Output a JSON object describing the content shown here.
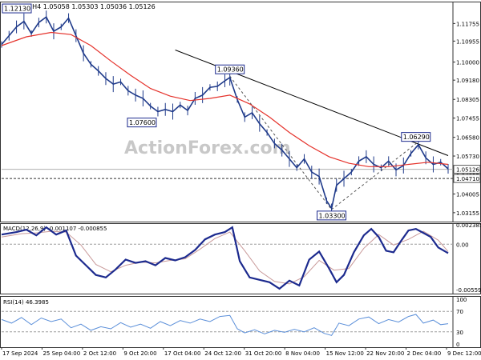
{
  "chart_data": [
    {
      "type": "candlestick",
      "title": "EURUSD,H4  1.05058 1.05303 1.05036 1.05126",
      "watermark": "ActionForex.com",
      "ylim": [
        1.0275,
        1.1275
      ],
      "y_ticks": [
        "1.11755",
        "1.10955",
        "1.10000",
        "1.09180",
        "1.08305",
        "1.07455",
        "1.06580",
        "1.05730",
        "1.04855",
        "1.04005",
        "1.03155"
      ],
      "x_ticks": [
        "17 Sep 2024",
        "25 Sep 04:00",
        "2 Oct 12:00",
        "9 Oct 20:00",
        "17 Oct 04:00",
        "24 Oct 12:00",
        "31 Oct 20:00",
        "8 Nov 04:00",
        "15 Nov 12:00",
        "22 Nov 20:00",
        "2 Dec 04:00",
        "9 Dec 12:00"
      ],
      "price_series": [
        {
          "x": 0,
          "y": 1.108
        },
        {
          "x": 3,
          "y": 1.112
        },
        {
          "x": 6,
          "y": 1.116
        },
        {
          "x": 9,
          "y": 1.1185
        },
        {
          "x": 12,
          "y": 1.113
        },
        {
          "x": 15,
          "y": 1.118
        },
        {
          "x": 18,
          "y": 1.1205
        },
        {
          "x": 21,
          "y": 1.114
        },
        {
          "x": 24,
          "y": 1.116
        },
        {
          "x": 27,
          "y": 1.12
        },
        {
          "x": 30,
          "y": 1.112
        },
        {
          "x": 33,
          "y": 1.104
        },
        {
          "x": 36,
          "y": 1.099
        },
        {
          "x": 39,
          "y": 1.096
        },
        {
          "x": 42,
          "y": 1.0925
        },
        {
          "x": 45,
          "y": 1.09
        },
        {
          "x": 48,
          "y": 1.091
        },
        {
          "x": 51,
          "y": 1.087
        },
        {
          "x": 54,
          "y": 1.085
        },
        {
          "x": 57,
          "y": 1.0835
        },
        {
          "x": 60,
          "y": 1.08
        },
        {
          "x": 63,
          "y": 1.0775
        },
        {
          "x": 66,
          "y": 1.0785
        },
        {
          "x": 69,
          "y": 1.0775
        },
        {
          "x": 72,
          "y": 1.0805
        },
        {
          "x": 75,
          "y": 1.078
        },
        {
          "x": 78,
          "y": 1.0835
        },
        {
          "x": 81,
          "y": 1.085
        },
        {
          "x": 84,
          "y": 1.0885
        },
        {
          "x": 87,
          "y": 1.089
        },
        {
          "x": 90,
          "y": 1.0915
        },
        {
          "x": 92,
          "y": 1.093
        },
        {
          "x": 95,
          "y": 1.083
        },
        {
          "x": 98,
          "y": 1.075
        },
        {
          "x": 101,
          "y": 1.077
        },
        {
          "x": 104,
          "y": 1.072
        },
        {
          "x": 107,
          "y": 1.068
        },
        {
          "x": 110,
          "y": 1.063
        },
        {
          "x": 113,
          "y": 1.06
        },
        {
          "x": 116,
          "y": 1.056
        },
        {
          "x": 119,
          "y": 1.052
        },
        {
          "x": 122,
          "y": 1.056
        },
        {
          "x": 125,
          "y": 1.05
        },
        {
          "x": 128,
          "y": 1.048
        },
        {
          "x": 131,
          "y": 1.037
        },
        {
          "x": 133,
          "y": 1.0335
        },
        {
          "x": 135,
          "y": 1.044
        },
        {
          "x": 138,
          "y": 1.047
        },
        {
          "x": 141,
          "y": 1.05
        },
        {
          "x": 144,
          "y": 1.055
        },
        {
          "x": 147,
          "y": 1.057
        },
        {
          "x": 150,
          "y": 1.0535
        },
        {
          "x": 153,
          "y": 1.052
        },
        {
          "x": 156,
          "y": 1.055
        },
        {
          "x": 159,
          "y": 1.051
        },
        {
          "x": 162,
          "y": 1.053
        },
        {
          "x": 165,
          "y": 1.0585
        },
        {
          "x": 168,
          "y": 1.0625
        },
        {
          "x": 171,
          "y": 1.0565
        },
        {
          "x": 174,
          "y": 1.0535
        },
        {
          "x": 177,
          "y": 1.0545
        },
        {
          "x": 180,
          "y": 1.0515
        }
      ],
      "moving_average": [
        {
          "x": 0,
          "y": 1.1075
        },
        {
          "x": 10,
          "y": 1.1115
        },
        {
          "x": 20,
          "y": 1.1135
        },
        {
          "x": 28,
          "y": 1.1125
        },
        {
          "x": 36,
          "y": 1.1075
        },
        {
          "x": 44,
          "y": 1.1005
        },
        {
          "x": 52,
          "y": 1.094
        },
        {
          "x": 60,
          "y": 1.088
        },
        {
          "x": 68,
          "y": 1.0845
        },
        {
          "x": 76,
          "y": 1.0825
        },
        {
          "x": 84,
          "y": 1.0835
        },
        {
          "x": 92,
          "y": 1.085
        },
        {
          "x": 100,
          "y": 1.081
        },
        {
          "x": 108,
          "y": 1.075
        },
        {
          "x": 116,
          "y": 1.068
        },
        {
          "x": 124,
          "y": 1.062
        },
        {
          "x": 132,
          "y": 1.057
        },
        {
          "x": 140,
          "y": 1.054
        },
        {
          "x": 148,
          "y": 1.0525
        },
        {
          "x": 156,
          "y": 1.0525
        },
        {
          "x": 164,
          "y": 1.0535
        },
        {
          "x": 172,
          "y": 1.0545
        },
        {
          "x": 180,
          "y": 1.0535
        }
      ],
      "trendline": [
        {
          "x": 70,
          "y": 1.1055
        },
        {
          "x": 180,
          "y": 1.0575
        }
      ],
      "support_line": 1.0471,
      "current_price_line": 1.05126,
      "fib_lines": [
        [
          {
            "x": 92,
            "y": 1.0936
          },
          {
            "x": 133,
            "y": 1.033
          }
        ],
        [
          {
            "x": 133,
            "y": 1.033
          },
          {
            "x": 167,
            "y": 1.0629
          }
        ]
      ],
      "annotations": [
        {
          "label": "1.12130",
          "x": 3,
          "y": 1.1213
        },
        {
          "label": "1.07600",
          "x": 63,
          "y": 1.076
        },
        {
          "label": "1.09360",
          "x": 92,
          "y": 1.0936
        },
        {
          "label": "1.06290",
          "x": 167,
          "y": 1.0629
        },
        {
          "label": "1.03300",
          "x": 133,
          "y": 1.033
        }
      ],
      "price_tags": [
        {
          "label": "1.05126",
          "y": 1.05126,
          "color": "#ffffff"
        },
        {
          "label": "1.04710",
          "y": 1.0471,
          "color": "#ffffff"
        }
      ]
    },
    {
      "type": "line",
      "title": "MACD(12,26,9) -0.001107 -0.000855",
      "ylim": [
        -0.0061,
        0.0026
      ],
      "y_ticks": [
        "0.002385",
        "0.00",
        "-0.005594"
      ],
      "series": [
        {
          "values": [
            {
              "x": 0,
              "y": 0.0012
            },
            {
              "x": 6,
              "y": 0.0015
            },
            {
              "x": 10,
              "y": 0.0018
            },
            {
              "x": 14,
              "y": 0.0011
            },
            {
              "x": 18,
              "y": 0.0021
            },
            {
              "x": 22,
              "y": 0.0012
            },
            {
              "x": 26,
              "y": 0.0017
            },
            {
              "x": 30,
              "y": -0.0014
            },
            {
              "x": 34,
              "y": -0.0026
            },
            {
              "x": 38,
              "y": -0.0038
            },
            {
              "x": 42,
              "y": -0.0041
            },
            {
              "x": 46,
              "y": -0.0031
            },
            {
              "x": 50,
              "y": -0.0019
            },
            {
              "x": 54,
              "y": -0.0023
            },
            {
              "x": 58,
              "y": -0.0021
            },
            {
              "x": 62,
              "y": -0.0026
            },
            {
              "x": 66,
              "y": -0.0017
            },
            {
              "x": 70,
              "y": -0.002
            },
            {
              "x": 74,
              "y": -0.0016
            },
            {
              "x": 78,
              "y": -0.0007
            },
            {
              "x": 82,
              "y": 0.0006
            },
            {
              "x": 86,
              "y": 0.0012
            },
            {
              "x": 90,
              "y": 0.0015
            },
            {
              "x": 93,
              "y": 0.0021
            },
            {
              "x": 96,
              "y": -0.0021
            },
            {
              "x": 100,
              "y": -0.0041
            },
            {
              "x": 104,
              "y": -0.0044
            },
            {
              "x": 108,
              "y": -0.0047
            },
            {
              "x": 112,
              "y": -0.0055
            },
            {
              "x": 116,
              "y": -0.0045
            },
            {
              "x": 120,
              "y": -0.0051
            },
            {
              "x": 124,
              "y": -0.0019
            },
            {
              "x": 128,
              "y": -0.0009
            },
            {
              "x": 132,
              "y": -0.003
            },
            {
              "x": 135,
              "y": -0.0047
            },
            {
              "x": 138,
              "y": -0.0038
            },
            {
              "x": 142,
              "y": -0.001
            },
            {
              "x": 146,
              "y": 0.0011
            },
            {
              "x": 149,
              "y": 0.0019
            },
            {
              "x": 152,
              "y": 0.0009
            },
            {
              "x": 155,
              "y": -0.0008
            },
            {
              "x": 158,
              "y": -0.001
            },
            {
              "x": 161,
              "y": 0.0004
            },
            {
              "x": 164,
              "y": 0.0017
            },
            {
              "x": 167,
              "y": 0.0019
            },
            {
              "x": 170,
              "y": 0.0014
            },
            {
              "x": 173,
              "y": 0.0009
            },
            {
              "x": 176,
              "y": -0.0004
            },
            {
              "x": 180,
              "y": -0.0011
            }
          ]
        },
        {
          "values": [
            {
              "x": 0,
              "y": 0.0009
            },
            {
              "x": 8,
              "y": 0.0013
            },
            {
              "x": 14,
              "y": 0.0014
            },
            {
              "x": 20,
              "y": 0.0016
            },
            {
              "x": 26,
              "y": 0.0015
            },
            {
              "x": 32,
              "y": -0.0001
            },
            {
              "x": 38,
              "y": -0.0025
            },
            {
              "x": 44,
              "y": -0.0034
            },
            {
              "x": 50,
              "y": -0.0026
            },
            {
              "x": 56,
              "y": -0.0022
            },
            {
              "x": 62,
              "y": -0.0023
            },
            {
              "x": 68,
              "y": -0.002
            },
            {
              "x": 74,
              "y": -0.0018
            },
            {
              "x": 80,
              "y": -0.0006
            },
            {
              "x": 86,
              "y": 0.0007
            },
            {
              "x": 92,
              "y": 0.0015
            },
            {
              "x": 98,
              "y": -0.0008
            },
            {
              "x": 104,
              "y": -0.0033
            },
            {
              "x": 110,
              "y": -0.0046
            },
            {
              "x": 116,
              "y": -0.0049
            },
            {
              "x": 122,
              "y": -0.004
            },
            {
              "x": 128,
              "y": -0.002
            },
            {
              "x": 134,
              "y": -0.0032
            },
            {
              "x": 140,
              "y": -0.003
            },
            {
              "x": 146,
              "y": -0.0005
            },
            {
              "x": 152,
              "y": 0.0012
            },
            {
              "x": 158,
              "y": -0.0001
            },
            {
              "x": 164,
              "y": 0.0006
            },
            {
              "x": 170,
              "y": 0.0016
            },
            {
              "x": 176,
              "y": 0.0005
            },
            {
              "x": 180,
              "y": -0.0009
            }
          ]
        }
      ]
    },
    {
      "type": "line",
      "title": "RSI(14) 46.3985",
      "ylim": [
        0,
        100
      ],
      "y_ticks": [
        "100",
        "70",
        "30",
        "0"
      ],
      "series": [
        {
          "values": [
            {
              "x": 0,
              "y": 54
            },
            {
              "x": 4,
              "y": 47
            },
            {
              "x": 8,
              "y": 58
            },
            {
              "x": 12,
              "y": 44
            },
            {
              "x": 16,
              "y": 57
            },
            {
              "x": 20,
              "y": 50
            },
            {
              "x": 24,
              "y": 55
            },
            {
              "x": 28,
              "y": 38
            },
            {
              "x": 32,
              "y": 45
            },
            {
              "x": 36,
              "y": 33
            },
            {
              "x": 40,
              "y": 40
            },
            {
              "x": 44,
              "y": 36
            },
            {
              "x": 48,
              "y": 48
            },
            {
              "x": 52,
              "y": 39
            },
            {
              "x": 56,
              "y": 45
            },
            {
              "x": 60,
              "y": 37
            },
            {
              "x": 64,
              "y": 50
            },
            {
              "x": 68,
              "y": 42
            },
            {
              "x": 72,
              "y": 52
            },
            {
              "x": 76,
              "y": 47
            },
            {
              "x": 80,
              "y": 55
            },
            {
              "x": 84,
              "y": 50
            },
            {
              "x": 88,
              "y": 60
            },
            {
              "x": 92,
              "y": 62
            },
            {
              "x": 95,
              "y": 36
            },
            {
              "x": 98,
              "y": 28
            },
            {
              "x": 102,
              "y": 34
            },
            {
              "x": 106,
              "y": 26
            },
            {
              "x": 110,
              "y": 33
            },
            {
              "x": 114,
              "y": 29
            },
            {
              "x": 118,
              "y": 35
            },
            {
              "x": 122,
              "y": 30
            },
            {
              "x": 126,
              "y": 38
            },
            {
              "x": 130,
              "y": 27
            },
            {
              "x": 133,
              "y": 23
            },
            {
              "x": 136,
              "y": 47
            },
            {
              "x": 140,
              "y": 42
            },
            {
              "x": 144,
              "y": 55
            },
            {
              "x": 148,
              "y": 59
            },
            {
              "x": 152,
              "y": 46
            },
            {
              "x": 156,
              "y": 54
            },
            {
              "x": 160,
              "y": 49
            },
            {
              "x": 164,
              "y": 60
            },
            {
              "x": 167,
              "y": 64
            },
            {
              "x": 170,
              "y": 47
            },
            {
              "x": 174,
              "y": 53
            },
            {
              "x": 177,
              "y": 44
            },
            {
              "x": 180,
              "y": 46
            }
          ]
        }
      ]
    }
  ],
  "colors": {
    "candles": "#1f3a8a",
    "moving_average": "#e5322b",
    "macd_line": "#1c2a8e",
    "signal_line": "#c99a9a",
    "rsi_line": "#5b8fd9",
    "trendline": "#000000",
    "annotation_border": "#1c2a8e",
    "grid_dash": "#9e9e9e",
    "watermark": "#c8c8c8"
  }
}
